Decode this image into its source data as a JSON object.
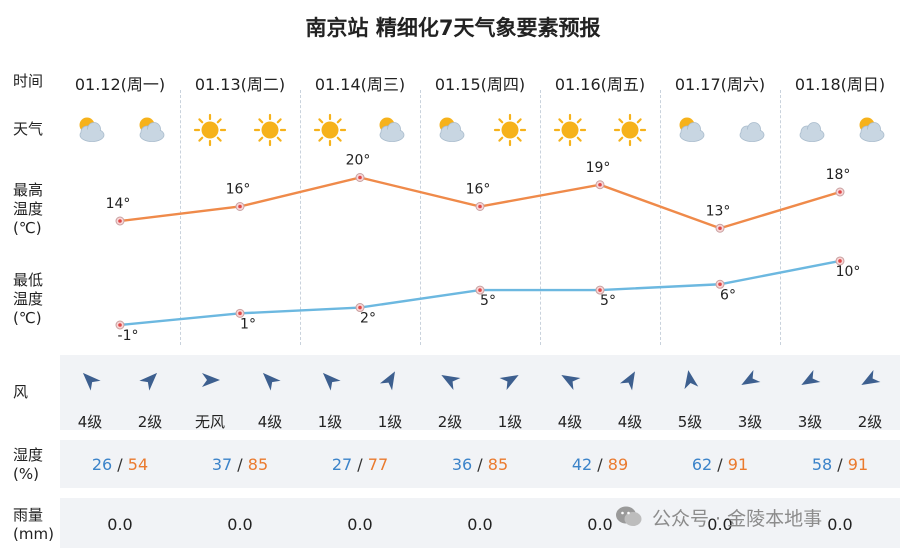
{
  "title": "南京站 精细化7天气象要素预报",
  "labels": {
    "time": "时间",
    "weather": "天气",
    "tmax": [
      "最高",
      "温度",
      "(℃)"
    ],
    "tmin": [
      "最低",
      "温度",
      "(℃)"
    ],
    "wind": "风",
    "humidity": [
      "湿度",
      "(%)"
    ],
    "rain": [
      "雨量",
      "(mm)"
    ]
  },
  "days": [
    {
      "date": "01.12(周一)",
      "weather": [
        "partly-cloudy",
        "partly-cloudy"
      ],
      "wind_dir_deg": [
        315,
        45
      ],
      "wind": [
        "4级",
        "2级"
      ],
      "hum_lo": "26",
      "hum_hi": "54",
      "rain": "0.0"
    },
    {
      "date": "01.13(周二)",
      "weather": [
        "sunny",
        "sunny"
      ],
      "wind_dir_deg": [
        90,
        315
      ],
      "wind": [
        "无风",
        "4级"
      ],
      "hum_lo": "37",
      "hum_hi": "85",
      "rain": "0.0"
    },
    {
      "date": "01.14(周三)",
      "weather": [
        "sunny",
        "partly-cloudy"
      ],
      "wind_dir_deg": [
        315,
        30
      ],
      "wind": [
        "1级",
        "1级"
      ],
      "hum_lo": "27",
      "hum_hi": "77",
      "rain": "0.0"
    },
    {
      "date": "01.15(周四)",
      "weather": [
        "partly-cloudy",
        "sunny"
      ],
      "wind_dir_deg": [
        300,
        60
      ],
      "wind": [
        "2级",
        "1级"
      ],
      "hum_lo": "36",
      "hum_hi": "85",
      "rain": "0.0"
    },
    {
      "date": "01.16(周五)",
      "weather": [
        "sunny",
        "sunny"
      ],
      "wind_dir_deg": [
        300,
        30
      ],
      "wind": [
        "4级",
        "4级"
      ],
      "hum_lo": "42",
      "hum_hi": "89",
      "rain": "0.0"
    },
    {
      "date": "01.17(周六)",
      "weather": [
        "partly-cloudy",
        "cloudy"
      ],
      "wind_dir_deg": [
        350,
        240
      ],
      "wind": [
        "5级",
        "3级"
      ],
      "hum_lo": "62",
      "hum_hi": "91",
      "rain": "0.0"
    },
    {
      "date": "01.18(周日)",
      "weather": [
        "cloudy",
        "partly-cloudy"
      ],
      "wind_dir_deg": [
        240,
        240
      ],
      "wind": [
        "3级",
        "2级"
      ],
      "hum_lo": "58",
      "hum_hi": "91",
      "rain": "0.0"
    }
  ],
  "colors": {
    "max_line": "#ef8a4a",
    "min_line": "#6cb8e0",
    "point_fill": "#e04a4a",
    "hum_lo": "#3b83c9",
    "hum_hi": "#ea7a2e",
    "arrow": "#3d5f8f",
    "sun": "#f6b21b",
    "cloud": "#c8d6e2"
  },
  "chart_data": {
    "type": "line",
    "categories": [
      "01.12(周一)",
      "01.13(周二)",
      "01.14(周三)",
      "01.15(周四)",
      "01.16(周五)",
      "01.17(周六)",
      "01.18(周日)"
    ],
    "series": [
      {
        "values": [
          14,
          16,
          20,
          16,
          19,
          13,
          18
        ],
        "labels": [
          "14°",
          "16°",
          "20°",
          "16°",
          "19°",
          "13°",
          "18°"
        ]
      },
      {
        "values": [
          -1,
          1,
          2,
          5,
          5,
          6,
          10
        ],
        "labels": [
          "-1°",
          "1°",
          "2°",
          "5°",
          "5°",
          "6°",
          "10°"
        ]
      }
    ],
    "humidity_min": [
      26,
      37,
      27,
      36,
      42,
      62,
      58
    ],
    "humidity_max": [
      54,
      85,
      77,
      85,
      89,
      91,
      91
    ],
    "rain": [
      0.0,
      0.0,
      0.0,
      0.0,
      0.0,
      0.0,
      0.0
    ]
  },
  "watermark": "公众号 · 金陵本地事"
}
